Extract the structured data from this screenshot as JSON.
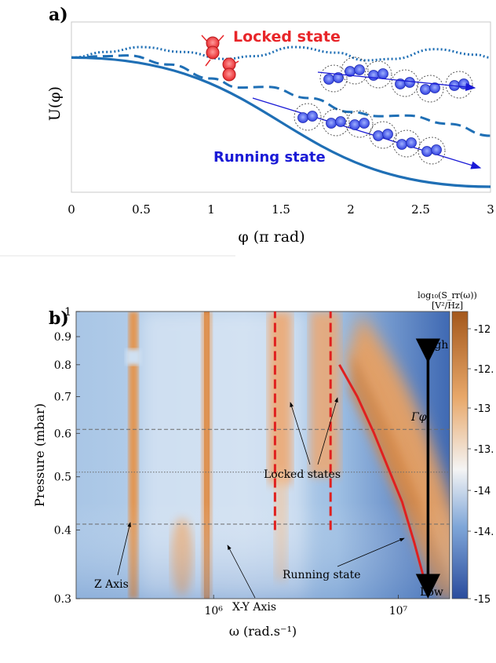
{
  "chart_data": [
    {
      "panel": "a)",
      "type": "line",
      "xlabel": "φ (π rad)",
      "ylabel": "U(φ)",
      "xlim": [
        0,
        3
      ],
      "xticks": [
        "0",
        "0.5",
        "1",
        "1.5",
        "2",
        "2.5",
        "3"
      ],
      "annotations": {
        "locked": "Locked state",
        "running": "Running state"
      },
      "colors": {
        "potential": "#1f6fb5",
        "locked": "#e8262a",
        "running": "#1a1ad6"
      },
      "series": [
        {
          "style": "solid",
          "x": [
            0,
            3
          ],
          "y": [
            1.0,
            -0.85
          ]
        },
        {
          "style": "dashed",
          "x": [
            0,
            0.25,
            0.4,
            0.7,
            1.0,
            1.2,
            1.4,
            1.7,
            2.0,
            2.2,
            2.4,
            2.7,
            3.0
          ],
          "y": [
            1.0,
            1.02,
            1.03,
            0.9,
            0.7,
            0.57,
            0.58,
            0.42,
            0.22,
            0.16,
            0.17,
            0.05,
            -0.12
          ]
        },
        {
          "style": "dotted",
          "x": [
            0,
            0.25,
            0.5,
            0.8,
            1.1,
            1.3,
            1.6,
            1.9,
            2.1,
            2.3,
            2.6,
            2.9,
            3.0
          ],
          "y": [
            1.0,
            1.08,
            1.15,
            1.08,
            0.98,
            1.02,
            1.15,
            1.07,
            0.96,
            0.98,
            1.12,
            1.04,
            1.0
          ]
        }
      ]
    },
    {
      "panel": "b)",
      "type": "heatmap",
      "xlabel": "ω (rad.s⁻¹)",
      "ylabel": "Pressure (mbar)",
      "xscale": "log",
      "xticks": [
        "10⁶",
        "10⁷"
      ],
      "xlim": [
        180000,
        19000000
      ],
      "yscale": "log",
      "ylim": [
        0.3,
        1
      ],
      "yticks": [
        "0.3",
        "0.4",
        "0.5",
        "0.6",
        "0.7",
        "0.8",
        "0.9",
        "1"
      ],
      "colorbar": {
        "label_line1": "log₁₀(S_rr(ω))",
        "label_line2": "[V²/Hz]",
        "range": [
          -15,
          -11.5
        ],
        "ticks": [
          "-12",
          "-12.",
          "-13",
          "-13.",
          "-14",
          "-14.",
          "-15"
        ],
        "colors": [
          "#2f52a2",
          "#f7f7f7",
          "#c0712b"
        ]
      },
      "reference_lines": [
        {
          "pressure": 0.61,
          "style": "dashed"
        },
        {
          "pressure": 0.51,
          "style": "dotted"
        },
        {
          "pressure": 0.41,
          "style": "dashed"
        }
      ],
      "locked_lines": [
        {
          "x": [
            2150000,
            2150000
          ],
          "y": [
            0.4,
            1
          ]
        },
        {
          "x": [
            4300000,
            4300000
          ],
          "y": [
            0.4,
            1
          ]
        }
      ],
      "running_line": {
        "x": [
          4800000,
          6000000,
          7400000,
          8800000,
          10500000,
          12200000,
          14000000
        ],
        "y": [
          0.8,
          0.7,
          0.6,
          0.52,
          0.45,
          0.38,
          0.32
        ]
      },
      "gamma_label": "Γφ",
      "gamma_arrow": {
        "x": 14500000,
        "y": [
          0.3,
          1
        ]
      },
      "annotations": {
        "high": "High",
        "low": "Low",
        "locked_states": "Locked states",
        "running_state": "Running state",
        "z_axis": "Z Axis",
        "xy_axis": "X-Y Axis"
      }
    }
  ]
}
